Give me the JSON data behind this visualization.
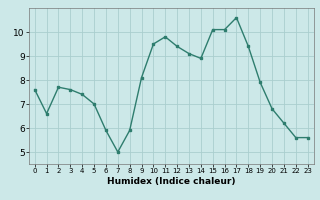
{
  "x": [
    0,
    1,
    2,
    3,
    4,
    5,
    6,
    7,
    8,
    9,
    10,
    11,
    12,
    13,
    14,
    15,
    16,
    17,
    18,
    19,
    20,
    21,
    22,
    23
  ],
  "y": [
    7.6,
    6.6,
    7.7,
    7.6,
    7.4,
    7.0,
    5.9,
    5.0,
    5.9,
    8.1,
    9.5,
    9.8,
    9.4,
    9.1,
    8.9,
    10.1,
    10.1,
    10.6,
    9.4,
    7.9,
    6.8,
    6.2,
    5.6,
    5.6
  ],
  "xlabel": "Humidex (Indice chaleur)",
  "ylim": [
    4.5,
    11.0
  ],
  "xlim": [
    -0.5,
    23.5
  ],
  "yticks": [
    5,
    6,
    7,
    8,
    9,
    10
  ],
  "xticks": [
    0,
    1,
    2,
    3,
    4,
    5,
    6,
    7,
    8,
    9,
    10,
    11,
    12,
    13,
    14,
    15,
    16,
    17,
    18,
    19,
    20,
    21,
    22,
    23
  ],
  "line_color": "#2e7d6e",
  "marker_color": "#2e7d6e",
  "bg_color": "#cce8e8",
  "grid_color": "#aacece"
}
